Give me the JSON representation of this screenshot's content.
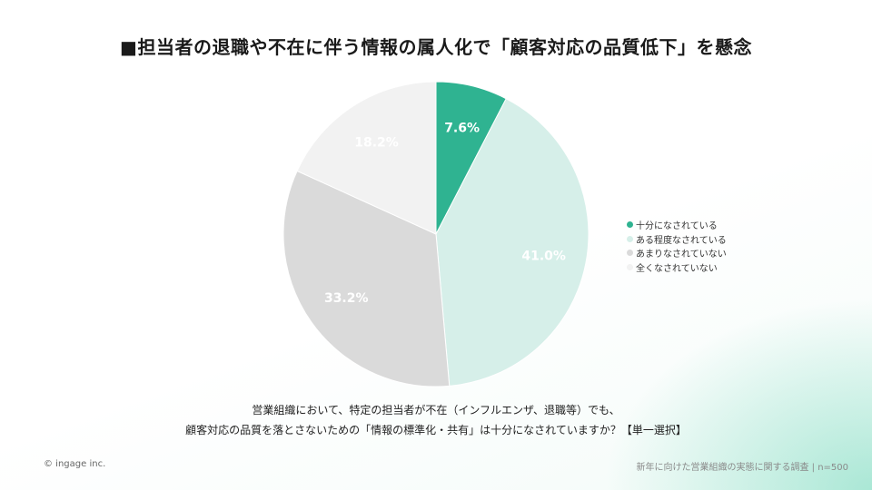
{
  "title": "■担当者の退職や不在に伴う情報の属人化で「顧客対応の品質低下」を懸念",
  "question": {
    "line1": "営業組織において、特定の担当者が不在（インフルエンザ、退職等）でも、",
    "line2": "顧客対応の品質を落とさないための「情報の標準化・共有」は十分になされていますか？【単一選択】"
  },
  "footer": {
    "copyright": "© ingage inc.",
    "source": "新年に向けた営業組織の実態に関する調査 | n=500"
  },
  "chart_data": {
    "type": "pie",
    "unit": "%",
    "legend_position": "right",
    "slices": [
      {
        "label": "十分になされている",
        "value": 7.6,
        "display": "7.6%",
        "color": "#2fb391",
        "text_color": "#ffffff"
      },
      {
        "label": "ある程度なされている",
        "value": 41.0,
        "display": "41.0%",
        "color": "#d6efe9",
        "text_color": "#ffffff"
      },
      {
        "label": "あまりなされていない",
        "value": 33.2,
        "display": "33.2%",
        "color": "#dadada",
        "text_color": "#ffffff"
      },
      {
        "label": "全くなされていない",
        "value": 18.2,
        "display": "18.2%",
        "color": "#f2f2f2",
        "text_color": "#ffffff"
      }
    ]
  }
}
